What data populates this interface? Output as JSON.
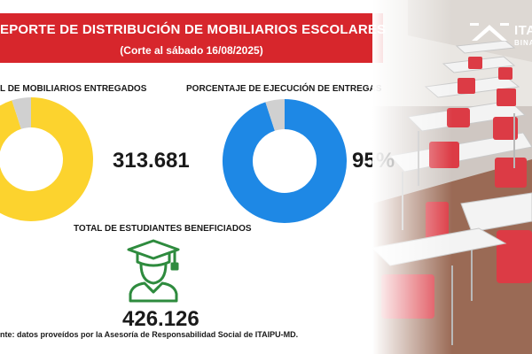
{
  "header": {
    "title": "EPORTE DE DISTRIBUCIÓN DE MOBILIARIOS ESCOLARES",
    "subtitle": "(Corte al sábado 16/08/2025)"
  },
  "brand": {
    "logo_text": "ITA",
    "logo_subtext": "BINA"
  },
  "chart_data": [
    {
      "type": "pie",
      "title": "L DE MOBILIARIOS ENTREGADOS",
      "value_label": "313.681",
      "slices": [
        0.95,
        0.05
      ],
      "colors": [
        "#fcd32e",
        "#d0d0d0"
      ]
    },
    {
      "type": "pie",
      "title": "PORCENTAJE DE EJECUCIÓN DE ENTREGAS",
      "value_label": "95%",
      "slices": [
        0.95,
        0.05
      ],
      "colors": [
        "#1e88e5",
        "#d0d0d0"
      ]
    }
  ],
  "students": {
    "title": "TOTAL DE ESTUDIANTES BENEFICIADOS",
    "value": "426.126",
    "icon": "graduate-icon",
    "color": "#2e8b3e"
  },
  "footer": {
    "source": "nte: datos proveídos por la Asesoría de Responsabilidad Social de ITAIPU-MD."
  }
}
